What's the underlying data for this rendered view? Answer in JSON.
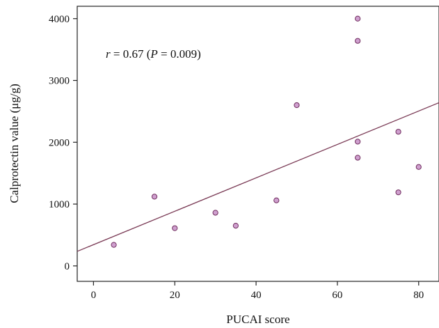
{
  "chart_data": {
    "type": "scatter",
    "xlabel": "PUCAI score",
    "ylabel": "Calprotectin value (μg/g)",
    "xlim": [
      -4,
      85
    ],
    "ylim": [
      -250,
      4200
    ],
    "xticks": [
      0,
      20,
      40,
      60,
      80
    ],
    "yticks": [
      0,
      1000,
      2000,
      3000,
      4000
    ],
    "points": [
      {
        "x": 5,
        "y": 340
      },
      {
        "x": 15,
        "y": 1120
      },
      {
        "x": 20,
        "y": 610
      },
      {
        "x": 30,
        "y": 860
      },
      {
        "x": 35,
        "y": 650
      },
      {
        "x": 45,
        "y": 1060
      },
      {
        "x": 50,
        "y": 2600
      },
      {
        "x": 65,
        "y": 4000
      },
      {
        "x": 65,
        "y": 3640
      },
      {
        "x": 65,
        "y": 2010
      },
      {
        "x": 65,
        "y": 1750
      },
      {
        "x": 75,
        "y": 2170
      },
      {
        "x": 75,
        "y": 1190
      },
      {
        "x": 80,
        "y": 1600
      }
    ],
    "regression_line": {
      "x": [
        -4,
        85
      ],
      "y": [
        235,
        2640
      ]
    },
    "annotation": {
      "r_symbol": "r",
      "r_text": " = 0.67 (",
      "p_symbol": "P",
      "p_text": " = 0.009)"
    },
    "colors": {
      "marker_fill": "#cfa0cf",
      "marker_stroke": "#6e2a5c",
      "line": "#7a3a55",
      "axis": "#222222"
    },
    "grid": false
  }
}
